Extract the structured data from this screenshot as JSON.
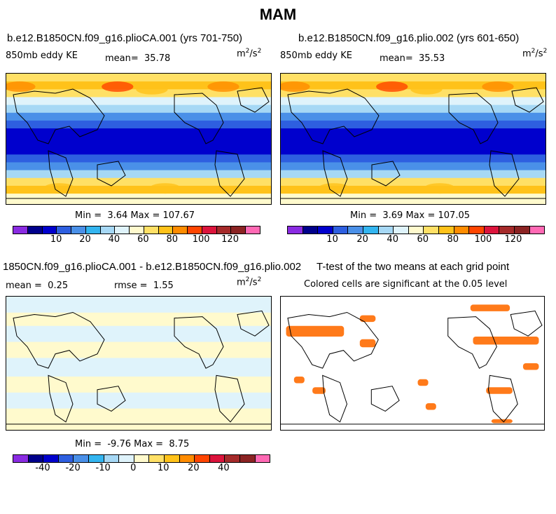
{
  "chart_data": [
    {
      "type": "heatmap",
      "panel": "top-left",
      "title": "b.e12.B1850CN.f09_g16.plioCA.001 (yrs 701-750)",
      "variable": "850mb eddy KE",
      "mean_label": "mean=",
      "mean": "35.78",
      "units_base": "m",
      "units_exp1": "2",
      "units_sep": "/s",
      "units_exp2": "2",
      "min_label": "Min =",
      "min": "3.64",
      "max_label": "Max =",
      "max": "107.67"
    },
    {
      "type": "heatmap",
      "panel": "top-right",
      "title": "b.e12.B1850CN.f09_g16.plio.002 (yrs 601-650)",
      "variable": "850mb eddy KE",
      "mean_label": "mean=",
      "mean": "35.53",
      "units_base": "m",
      "units_exp1": "2",
      "units_sep": "/s",
      "units_exp2": "2",
      "min_label": "Min =",
      "min": "3.69",
      "max_label": "Max =",
      "max": "107.05"
    },
    {
      "type": "heatmap",
      "panel": "bottom-left",
      "title": "1850CN.f09_g16.plioCA.001 - b.e12.B1850CN.f09_g16.plio.002",
      "mean_label": "mean =",
      "mean": "0.25",
      "rmse_label": "rmse =",
      "rmse": "1.55",
      "units_base": "m",
      "units_exp1": "2",
      "units_sep": "/s",
      "units_exp2": "2",
      "min_label": "Min =",
      "min": "-9.76",
      "max_label": "Max =",
      "max": "8.75"
    },
    {
      "type": "heatmap",
      "panel": "bottom-right",
      "title": "T-test of the two means at each grid point",
      "subtitle": "Colored cells are significant at the 0.05 level"
    }
  ],
  "page": {
    "title": "MAM"
  },
  "colorbar_abs": {
    "colors": [
      "#8a2be2",
      "#00008b",
      "#0000cd",
      "#2e5fe0",
      "#4a90e8",
      "#33b5f0",
      "#a6d8f5",
      "#dff3fb",
      "#fffacd",
      "#ffe066",
      "#ffc21a",
      "#ff8c00",
      "#ff4500",
      "#dc143c",
      "#a52a2a",
      "#8b2323",
      "#ff69b4"
    ],
    "ticks": [
      "10",
      "20",
      "40",
      "60",
      "80",
      "100",
      "120"
    ]
  },
  "colorbar_diff": {
    "colors": [
      "#8a2be2",
      "#00008b",
      "#0000cd",
      "#2e5fe0",
      "#4a90e8",
      "#33b5f0",
      "#a6d8f5",
      "#dff3fb",
      "#fffacd",
      "#ffe066",
      "#ffc21a",
      "#ff8c00",
      "#ff4500",
      "#dc143c",
      "#a52a2a",
      "#8b2323",
      "#ff69b4"
    ],
    "ticks": [
      "-40",
      "-20",
      "-10",
      "0",
      "10",
      "20",
      "40"
    ]
  }
}
